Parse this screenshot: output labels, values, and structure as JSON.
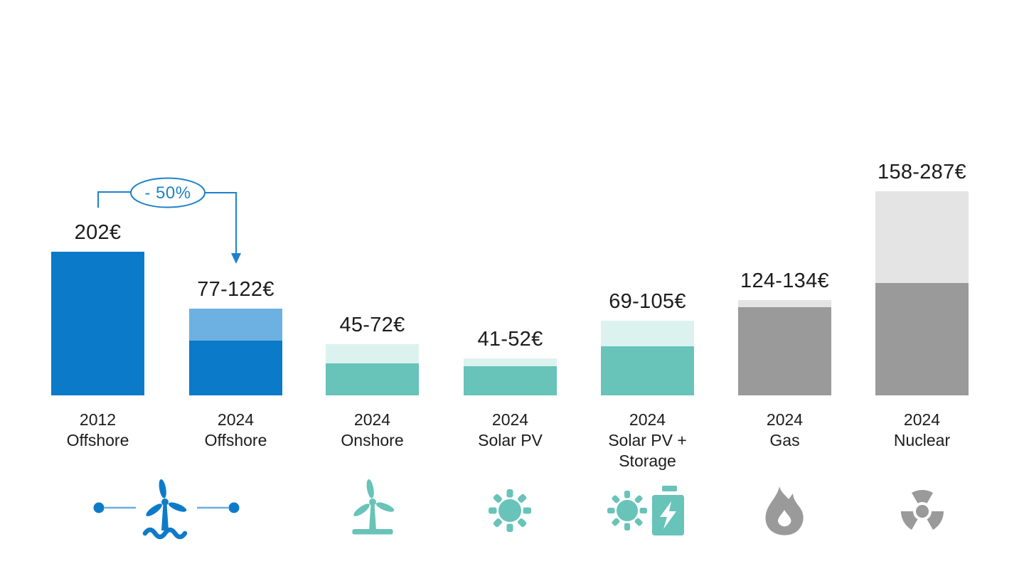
{
  "background_color": "#ffffff",
  "text_color": "#1c1c1c",
  "chart_data": {
    "type": "bar",
    "title": "",
    "unit": "€ (euro)",
    "description": "Cost ranges per energy source; dark lower segment = low estimate, pale upper segment = low-to-high range",
    "ylim": [
      0,
      300
    ],
    "axes_visible": false,
    "grid": false,
    "columns": [
      {
        "category": [
          "2012",
          "Offshore"
        ],
        "value_label": "202€",
        "low": 202,
        "high": 202,
        "palette": "blue"
      },
      {
        "category": [
          "2024",
          "Offshore"
        ],
        "value_label": "77-122€",
        "low": 77,
        "high": 122,
        "palette": "blue"
      },
      {
        "category": [
          "2024",
          "Onshore"
        ],
        "value_label": "45-72€",
        "low": 45,
        "high": 72,
        "palette": "teal"
      },
      {
        "category": [
          "2024",
          "Solar PV"
        ],
        "value_label": "41-52€",
        "low": 41,
        "high": 52,
        "palette": "teal"
      },
      {
        "category": [
          "2024",
          "Solar PV +",
          "Storage"
        ],
        "value_label": "69-105€",
        "low": 69,
        "high": 105,
        "palette": "teal"
      },
      {
        "category": [
          "2024",
          "Gas"
        ],
        "value_label": "124-134€",
        "low": 124,
        "high": 134,
        "palette": "gray"
      },
      {
        "category": [
          "2024",
          "Nuclear"
        ],
        "value_label": "158-287€",
        "low": 158,
        "high": 287,
        "palette": "gray"
      }
    ],
    "palettes": {
      "blue": {
        "main": "#0b7ac8",
        "light": "#6cb1e1"
      },
      "teal": {
        "main": "#68c3b9",
        "light": "#dcf2ef"
      },
      "gray": {
        "main": "#9a9a9a",
        "light": "#e4e4e4"
      }
    },
    "annotation": {
      "label": "- 50%",
      "color": "#1e81c9",
      "from_category": "2012 Offshore",
      "to_category": "2024 Offshore"
    },
    "icons": [
      {
        "name": "offshore-wind-icon",
        "color": "#0e7bc9"
      },
      {
        "name": "onshore-wind-icon",
        "color": "#68c3b9"
      },
      {
        "name": "sun-icon",
        "color": "#68c3b9"
      },
      {
        "name": "sun-battery-icon",
        "color": "#68c3b9"
      },
      {
        "name": "flame-icon",
        "color": "#9a9a9a"
      },
      {
        "name": "radiation-icon",
        "color": "#9a9a9a"
      }
    ]
  }
}
